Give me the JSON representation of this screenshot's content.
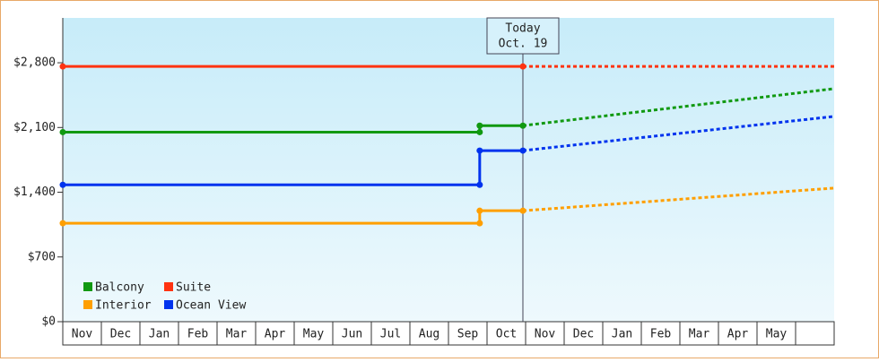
{
  "chart_data": {
    "type": "line",
    "categories": [
      "Nov",
      "Dec",
      "Jan",
      "Feb",
      "Mar",
      "Apr",
      "May",
      "Jun",
      "Jul",
      "Aug",
      "Sep",
      "Oct",
      "Nov",
      "Dec",
      "Jan",
      "Feb",
      "Mar",
      "Apr",
      "May",
      null
    ],
    "xlim": [
      0,
      20
    ],
    "ylim": [
      0,
      3285
    ],
    "yticks": [
      {
        "value": 0,
        "label": "$0"
      },
      {
        "value": 700,
        "label": "$700"
      },
      {
        "value": 1400,
        "label": "$1,400"
      },
      {
        "value": 2100,
        "label": "$2,100"
      },
      {
        "value": 2800,
        "label": "$2,800"
      }
    ],
    "today": {
      "x": 11.93,
      "label_top": "Today",
      "label_bottom": "Oct. 19"
    },
    "legend": "lower left",
    "series": [
      {
        "name": "Balcony",
        "color": "#119911",
        "x": [
          0,
          10.81,
          10.81,
          11.93,
          20
        ],
        "values": [
          2050,
          2050,
          2120,
          2120,
          2520
        ]
      },
      {
        "name": "Suite",
        "color": "#ff3311",
        "x": [
          0,
          11.93,
          20
        ],
        "values": [
          2760,
          2760,
          2760
        ]
      },
      {
        "name": "Interior",
        "color": "#ff9f00",
        "x": [
          0,
          10.81,
          10.81,
          11.93,
          20
        ],
        "values": [
          1065,
          1065,
          1200,
          1200,
          1445
        ]
      },
      {
        "name": "Ocean View",
        "color": "#0033ee",
        "x": [
          0,
          10.81,
          10.81,
          11.93,
          20
        ],
        "values": [
          1480,
          1480,
          1850,
          1850,
          2220
        ]
      }
    ]
  }
}
